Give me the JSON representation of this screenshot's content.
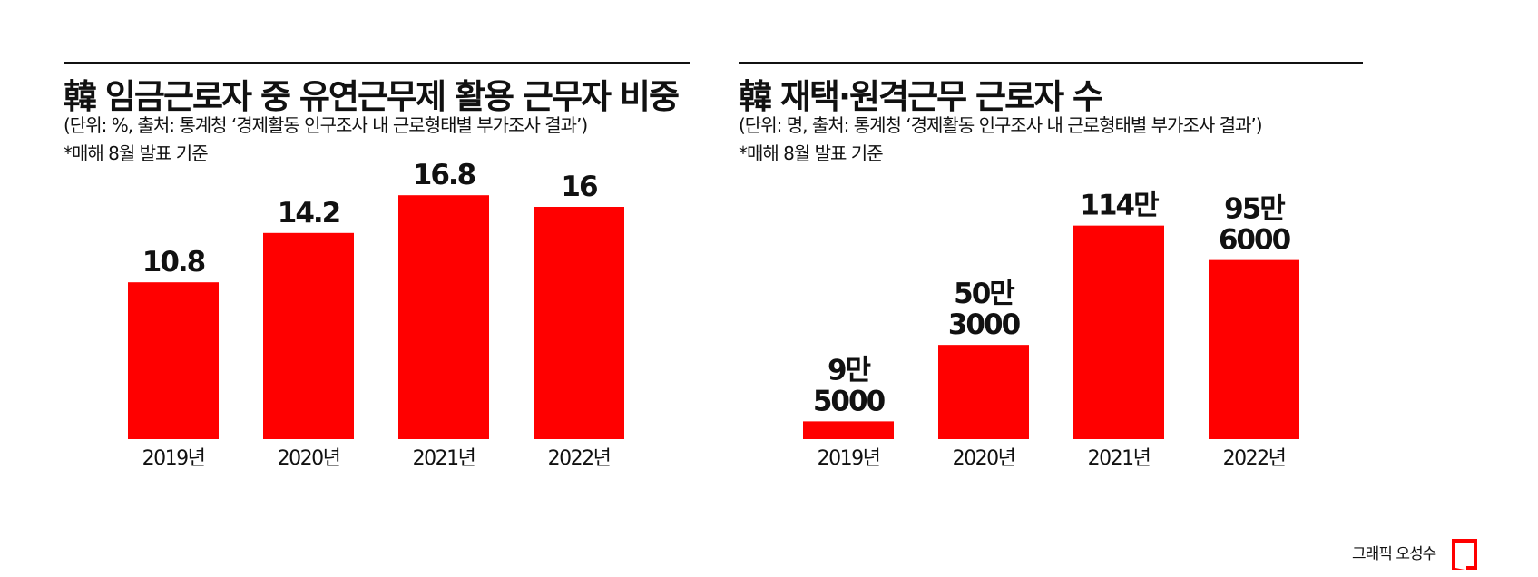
{
  "colors": {
    "bar": "#ff0000",
    "text": "#111111"
  },
  "chart_data": [
    {
      "type": "bar",
      "title": "韓 임금근로자 중 유연근무제 활용 근무자 비중",
      "subtitle": "(단위: %, 출처: 통계청 ‘경제활동 인구조사 내 근로형태별 부가조사 결과’)",
      "note": "*매해 8월 발표 기준",
      "categories": [
        "2019년",
        "2020년",
        "2021년",
        "2022년"
      ],
      "values": [
        10.8,
        14.2,
        16.8,
        16
      ],
      "data_labels": [
        [
          "10.8"
        ],
        [
          "14.2"
        ],
        [
          "16.8"
        ],
        [
          "16"
        ]
      ],
      "ylim": [
        0,
        20
      ],
      "xlabel": "",
      "ylabel": "",
      "grid": false
    },
    {
      "type": "bar",
      "title": "韓 재택·원격근무 근로자 수",
      "subtitle": "(단위: 명, 출처: 통계청 ‘경제활동 인구조사 내 근로형태별 부가조사 결과’)",
      "note": "*매해 8월 발표 기준",
      "categories": [
        "2019년",
        "2020년",
        "2021년",
        "2022년"
      ],
      "values": [
        95000,
        503000,
        1140000,
        956000
      ],
      "data_labels": [
        [
          "9만",
          "5000"
        ],
        [
          "50만",
          "3000"
        ],
        [
          "114만"
        ],
        [
          "95만",
          "6000"
        ]
      ],
      "ylim": [
        0,
        1550000
      ],
      "xlabel": "",
      "ylabel": "",
      "grid": false
    }
  ],
  "credit": "그래픽 오성수"
}
